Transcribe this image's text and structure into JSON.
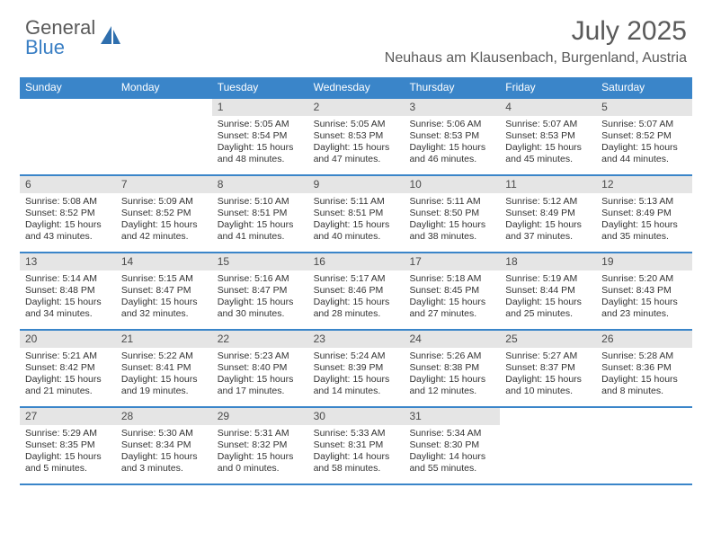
{
  "brand": {
    "part1": "General",
    "part2": "Blue"
  },
  "title": "July 2025",
  "location": "Neuhaus am Klausenbach, Burgenland, Austria",
  "colors": {
    "header_bar": "#3a85c9",
    "daynum_bg": "#e5e5e5",
    "rule": "#3a85c9",
    "text": "#333333",
    "brand_blue": "#3a7fc4",
    "brand_gray": "#5a5a5a"
  },
  "dow": [
    "Sunday",
    "Monday",
    "Tuesday",
    "Wednesday",
    "Thursday",
    "Friday",
    "Saturday"
  ],
  "weeks": [
    [
      {
        "n": "",
        "sr": "",
        "ss": "",
        "dl": ""
      },
      {
        "n": "",
        "sr": "",
        "ss": "",
        "dl": ""
      },
      {
        "n": "1",
        "sr": "Sunrise: 5:05 AM",
        "ss": "Sunset: 8:54 PM",
        "dl": "Daylight: 15 hours and 48 minutes."
      },
      {
        "n": "2",
        "sr": "Sunrise: 5:05 AM",
        "ss": "Sunset: 8:53 PM",
        "dl": "Daylight: 15 hours and 47 minutes."
      },
      {
        "n": "3",
        "sr": "Sunrise: 5:06 AM",
        "ss": "Sunset: 8:53 PM",
        "dl": "Daylight: 15 hours and 46 minutes."
      },
      {
        "n": "4",
        "sr": "Sunrise: 5:07 AM",
        "ss": "Sunset: 8:53 PM",
        "dl": "Daylight: 15 hours and 45 minutes."
      },
      {
        "n": "5",
        "sr": "Sunrise: 5:07 AM",
        "ss": "Sunset: 8:52 PM",
        "dl": "Daylight: 15 hours and 44 minutes."
      }
    ],
    [
      {
        "n": "6",
        "sr": "Sunrise: 5:08 AM",
        "ss": "Sunset: 8:52 PM",
        "dl": "Daylight: 15 hours and 43 minutes."
      },
      {
        "n": "7",
        "sr": "Sunrise: 5:09 AM",
        "ss": "Sunset: 8:52 PM",
        "dl": "Daylight: 15 hours and 42 minutes."
      },
      {
        "n": "8",
        "sr": "Sunrise: 5:10 AM",
        "ss": "Sunset: 8:51 PM",
        "dl": "Daylight: 15 hours and 41 minutes."
      },
      {
        "n": "9",
        "sr": "Sunrise: 5:11 AM",
        "ss": "Sunset: 8:51 PM",
        "dl": "Daylight: 15 hours and 40 minutes."
      },
      {
        "n": "10",
        "sr": "Sunrise: 5:11 AM",
        "ss": "Sunset: 8:50 PM",
        "dl": "Daylight: 15 hours and 38 minutes."
      },
      {
        "n": "11",
        "sr": "Sunrise: 5:12 AM",
        "ss": "Sunset: 8:49 PM",
        "dl": "Daylight: 15 hours and 37 minutes."
      },
      {
        "n": "12",
        "sr": "Sunrise: 5:13 AM",
        "ss": "Sunset: 8:49 PM",
        "dl": "Daylight: 15 hours and 35 minutes."
      }
    ],
    [
      {
        "n": "13",
        "sr": "Sunrise: 5:14 AM",
        "ss": "Sunset: 8:48 PM",
        "dl": "Daylight: 15 hours and 34 minutes."
      },
      {
        "n": "14",
        "sr": "Sunrise: 5:15 AM",
        "ss": "Sunset: 8:47 PM",
        "dl": "Daylight: 15 hours and 32 minutes."
      },
      {
        "n": "15",
        "sr": "Sunrise: 5:16 AM",
        "ss": "Sunset: 8:47 PM",
        "dl": "Daylight: 15 hours and 30 minutes."
      },
      {
        "n": "16",
        "sr": "Sunrise: 5:17 AM",
        "ss": "Sunset: 8:46 PM",
        "dl": "Daylight: 15 hours and 28 minutes."
      },
      {
        "n": "17",
        "sr": "Sunrise: 5:18 AM",
        "ss": "Sunset: 8:45 PM",
        "dl": "Daylight: 15 hours and 27 minutes."
      },
      {
        "n": "18",
        "sr": "Sunrise: 5:19 AM",
        "ss": "Sunset: 8:44 PM",
        "dl": "Daylight: 15 hours and 25 minutes."
      },
      {
        "n": "19",
        "sr": "Sunrise: 5:20 AM",
        "ss": "Sunset: 8:43 PM",
        "dl": "Daylight: 15 hours and 23 minutes."
      }
    ],
    [
      {
        "n": "20",
        "sr": "Sunrise: 5:21 AM",
        "ss": "Sunset: 8:42 PM",
        "dl": "Daylight: 15 hours and 21 minutes."
      },
      {
        "n": "21",
        "sr": "Sunrise: 5:22 AM",
        "ss": "Sunset: 8:41 PM",
        "dl": "Daylight: 15 hours and 19 minutes."
      },
      {
        "n": "22",
        "sr": "Sunrise: 5:23 AM",
        "ss": "Sunset: 8:40 PM",
        "dl": "Daylight: 15 hours and 17 minutes."
      },
      {
        "n": "23",
        "sr": "Sunrise: 5:24 AM",
        "ss": "Sunset: 8:39 PM",
        "dl": "Daylight: 15 hours and 14 minutes."
      },
      {
        "n": "24",
        "sr": "Sunrise: 5:26 AM",
        "ss": "Sunset: 8:38 PM",
        "dl": "Daylight: 15 hours and 12 minutes."
      },
      {
        "n": "25",
        "sr": "Sunrise: 5:27 AM",
        "ss": "Sunset: 8:37 PM",
        "dl": "Daylight: 15 hours and 10 minutes."
      },
      {
        "n": "26",
        "sr": "Sunrise: 5:28 AM",
        "ss": "Sunset: 8:36 PM",
        "dl": "Daylight: 15 hours and 8 minutes."
      }
    ],
    [
      {
        "n": "27",
        "sr": "Sunrise: 5:29 AM",
        "ss": "Sunset: 8:35 PM",
        "dl": "Daylight: 15 hours and 5 minutes."
      },
      {
        "n": "28",
        "sr": "Sunrise: 5:30 AM",
        "ss": "Sunset: 8:34 PM",
        "dl": "Daylight: 15 hours and 3 minutes."
      },
      {
        "n": "29",
        "sr": "Sunrise: 5:31 AM",
        "ss": "Sunset: 8:32 PM",
        "dl": "Daylight: 15 hours and 0 minutes."
      },
      {
        "n": "30",
        "sr": "Sunrise: 5:33 AM",
        "ss": "Sunset: 8:31 PM",
        "dl": "Daylight: 14 hours and 58 minutes."
      },
      {
        "n": "31",
        "sr": "Sunrise: 5:34 AM",
        "ss": "Sunset: 8:30 PM",
        "dl": "Daylight: 14 hours and 55 minutes."
      },
      {
        "n": "",
        "sr": "",
        "ss": "",
        "dl": ""
      },
      {
        "n": "",
        "sr": "",
        "ss": "",
        "dl": ""
      }
    ]
  ]
}
